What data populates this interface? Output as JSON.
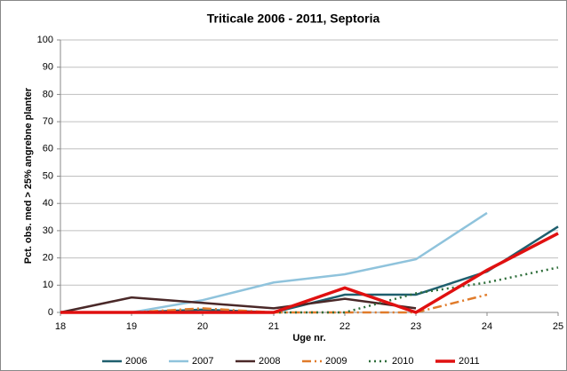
{
  "chart_data": {
    "type": "line",
    "title": "Triticale 2006 - 2011, Septoria",
    "x_label": "Uge nr.",
    "y_label": "Pct. obs. med > 25% angrebne planter",
    "x": [
      18,
      19,
      20,
      21,
      22,
      23,
      24,
      25
    ],
    "xlim": [
      18,
      25
    ],
    "xticks": [
      18,
      19,
      20,
      21,
      22,
      23,
      24,
      25
    ],
    "ylim": [
      0,
      100
    ],
    "yticks": [
      0,
      10,
      20,
      30,
      40,
      50,
      60,
      70,
      80,
      90,
      100
    ],
    "grid": true,
    "legend": "bottom",
    "series": [
      {
        "name": "2006",
        "color": "#1f5f6e",
        "style": "solid",
        "width": 2.5,
        "values": [
          0,
          0,
          1,
          0,
          6.5,
          6.5,
          15,
          31.5
        ]
      },
      {
        "name": "2007",
        "color": "#8fc3dc",
        "style": "solid",
        "width": 2.5,
        "values": [
          0,
          0,
          4.5,
          11,
          14,
          19.5,
          36.5,
          null
        ]
      },
      {
        "name": "2008",
        "color": "#4a2828",
        "style": "solid",
        "width": 2.5,
        "values": [
          0,
          5.5,
          3.5,
          1.5,
          5,
          1.5,
          null,
          null
        ]
      },
      {
        "name": "2009",
        "color": "#e07b2a",
        "style": "dashdot",
        "width": 2.5,
        "values": [
          0,
          0,
          1.5,
          0,
          0,
          0,
          6.5,
          null
        ]
      },
      {
        "name": "2010",
        "color": "#2e6e3a",
        "style": "dotted",
        "width": 2.5,
        "values": [
          0,
          0,
          0,
          0,
          0,
          7,
          11,
          16.5
        ]
      },
      {
        "name": "2011",
        "color": "#e01010",
        "style": "solid",
        "width": 3.5,
        "values": [
          0,
          0,
          0,
          0,
          9,
          0,
          15.5,
          29
        ]
      }
    ]
  }
}
